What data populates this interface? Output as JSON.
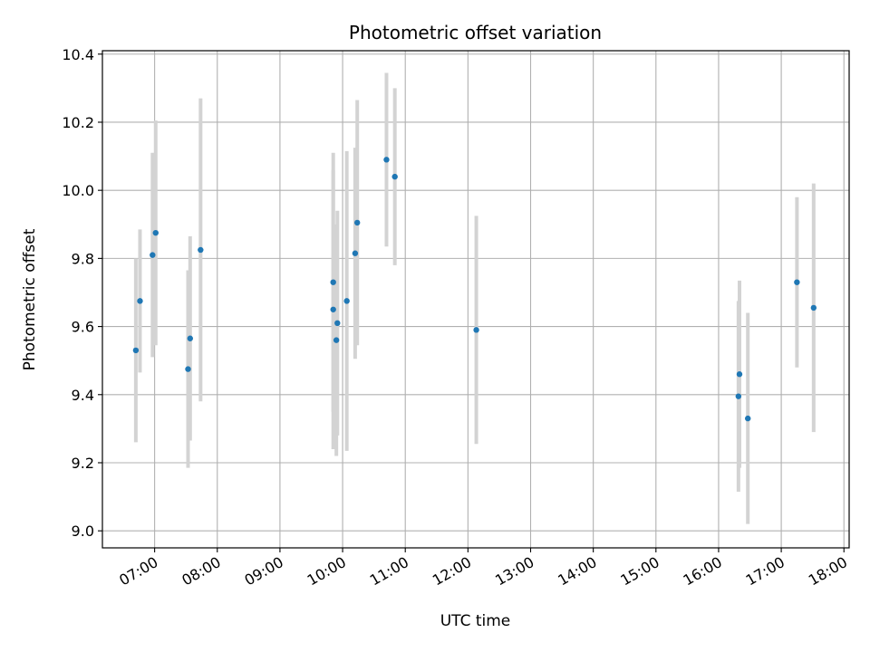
{
  "chart_data": {
    "type": "scatter",
    "title": "Photometric offset variation",
    "xlabel": "UTC time",
    "ylabel": "Photometric offset",
    "xlim": [
      "06:10",
      "18:05"
    ],
    "ylim": [
      8.95,
      10.41
    ],
    "x_ticks": [
      "07:00",
      "08:00",
      "09:00",
      "10:00",
      "11:00",
      "12:00",
      "13:00",
      "14:00",
      "15:00",
      "16:00",
      "17:00",
      "18:00"
    ],
    "y_ticks": [
      "9.0",
      "9.2",
      "9.4",
      "9.6",
      "9.8",
      "10.0",
      "10.2",
      "10.4"
    ],
    "grid": true,
    "colors": {
      "point": "#1f77b4",
      "errorbar": "#d3d3d3",
      "grid": "#b0b0b0"
    },
    "series": [
      {
        "points": [
          {
            "x": "06:42",
            "y": 9.53,
            "err": 0.27
          },
          {
            "x": "06:46",
            "y": 9.675,
            "err": 0.21
          },
          {
            "x": "06:58",
            "y": 9.81,
            "err": 0.3
          },
          {
            "x": "07:01",
            "y": 9.875,
            "err": 0.33
          },
          {
            "x": "07:32",
            "y": 9.475,
            "err": 0.29
          },
          {
            "x": "07:34",
            "y": 9.565,
            "err": 0.3
          },
          {
            "x": "07:44",
            "y": 9.825,
            "err": 0.445
          },
          {
            "x": "09:51",
            "y": 9.73,
            "err": 0.38
          },
          {
            "x": "09:51",
            "y": 9.65,
            "err": 0.41
          },
          {
            "x": "09:55",
            "y": 9.61,
            "err": 0.33
          },
          {
            "x": "09:54",
            "y": 9.56,
            "err": 0.34
          },
          {
            "x": "10:04",
            "y": 9.675,
            "err": 0.44
          },
          {
            "x": "10:12",
            "y": 9.815,
            "err": 0.31
          },
          {
            "x": "10:14",
            "y": 9.905,
            "err": 0.36
          },
          {
            "x": "10:42",
            "y": 10.09,
            "err": 0.255
          },
          {
            "x": "10:50",
            "y": 10.04,
            "err": 0.26
          },
          {
            "x": "12:08",
            "y": 9.59,
            "err": 0.335
          },
          {
            "x": "16:19",
            "y": 9.395,
            "err": 0.28
          },
          {
            "x": "16:20",
            "y": 9.46,
            "err": 0.275
          },
          {
            "x": "16:28",
            "y": 9.33,
            "err": 0.31
          },
          {
            "x": "17:15",
            "y": 9.73,
            "err": 0.25
          },
          {
            "x": "17:31",
            "y": 9.655,
            "err": 0.365
          }
        ]
      }
    ]
  }
}
